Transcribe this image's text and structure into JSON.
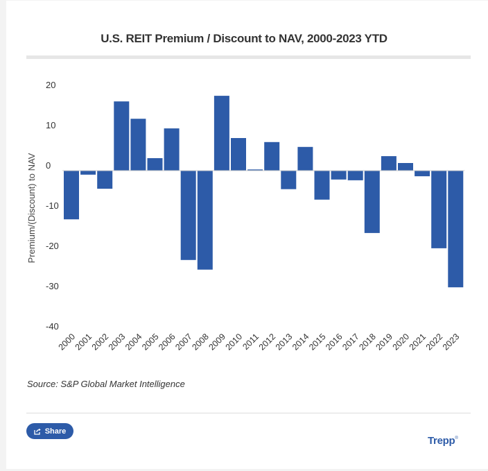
{
  "chart_data": {
    "type": "bar",
    "title": "U.S. REIT Premium / Discount to NAV, 2000-2023 YTD",
    "xlabel": "",
    "ylabel": "Premium/(Discount) to NAV",
    "ylim": [
      -40,
      20
    ],
    "yticks": [
      20,
      10,
      0,
      -10,
      -20,
      -30,
      -40
    ],
    "grid": false,
    "categories": [
      "2000",
      "2001",
      "2002",
      "2003",
      "2004",
      "2005",
      "2006",
      "2007",
      "2008",
      "2009",
      "2010",
      "2011",
      "2012",
      "2013",
      "2014",
      "2015",
      "2016",
      "2017",
      "2018",
      "2019",
      "2020",
      "2021",
      "2022",
      "2023"
    ],
    "values": [
      -12.1,
      -1.0,
      -4.5,
      17.2,
      12.9,
      3.1,
      10.5,
      -22.2,
      -24.6,
      18.6,
      8.1,
      0.3,
      7.1,
      -4.6,
      5.9,
      -7.2,
      -2.2,
      -2.4,
      -15.5,
      3.6,
      1.9,
      -1.4,
      -19.3,
      -29.0
    ],
    "bar_color": "#2d5ba8",
    "source": "Source: S&P Global Market Intelligence"
  },
  "footer": {
    "share_label": "Share",
    "share_icon": "share-icon",
    "brand": "Trepp",
    "brand_mark": "®"
  },
  "colors": {
    "accent": "#2d5ba8",
    "text": "#333333"
  }
}
